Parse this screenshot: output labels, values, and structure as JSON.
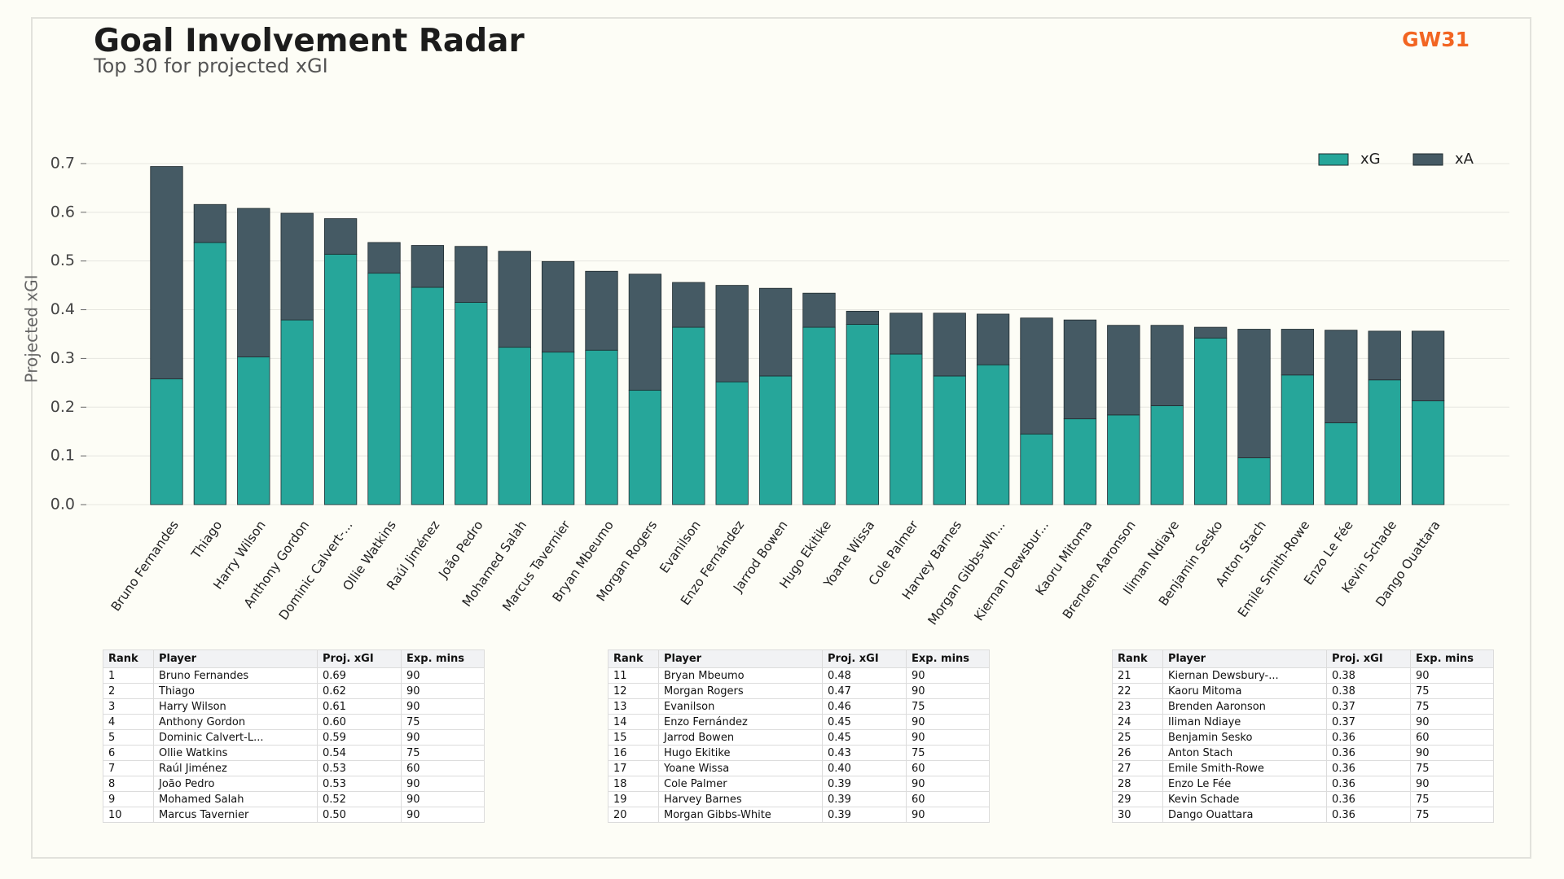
{
  "header": {
    "title": "Goal Involvement Radar",
    "subtitle": "Top 30 for projected xGI",
    "badge": "GW31"
  },
  "chart_data": {
    "type": "stacked_bar",
    "y_label": "Projected xGI",
    "categories": [
      "Bruno Fernandes",
      "Thiago",
      "Harry Wilson",
      "Anthony Gordon",
      "Dominic Calvert-...",
      "Ollie Watkins",
      "Raúl Jiménez",
      "João Pedro",
      "Mohamed Salah",
      "Marcus Tavernier",
      "Bryan Mbeumo",
      "Morgan Rogers",
      "Evanilson",
      "Enzo Fernández",
      "Jarrod Bowen",
      "Hugo Ekitike",
      "Yoane Wissa",
      "Cole Palmer",
      "Harvey Barnes",
      "Morgan Gibbs-Wh...",
      "Kiernan Dewsbur...",
      "Kaoru Mitoma",
      "Brenden Aaronson",
      "Iliman Ndiaye",
      "Benjamin Sesko",
      "Anton Stach",
      "Emile Smith-Rowe",
      "Enzo Le Fée",
      "Kevin Schade",
      "Dango Ouattara"
    ],
    "series": [
      {
        "name": "xG",
        "color": "#26a69a",
        "values": [
          0.258,
          0.538,
          0.303,
          0.379,
          0.514,
          0.475,
          0.446,
          0.415,
          0.323,
          0.313,
          0.317,
          0.235,
          0.364,
          0.252,
          0.264,
          0.364,
          0.37,
          0.309,
          0.264,
          0.287,
          0.145,
          0.176,
          0.184,
          0.203,
          0.342,
          0.096,
          0.266,
          0.168,
          0.256,
          0.213
        ]
      },
      {
        "name": "xA",
        "color": "#455a64",
        "values": [
          0.436,
          0.078,
          0.305,
          0.219,
          0.073,
          0.063,
          0.086,
          0.115,
          0.197,
          0.186,
          0.162,
          0.238,
          0.092,
          0.198,
          0.18,
          0.07,
          0.027,
          0.084,
          0.129,
          0.104,
          0.238,
          0.203,
          0.184,
          0.165,
          0.022,
          0.264,
          0.094,
          0.19,
          0.1,
          0.143
        ]
      }
    ],
    "ylim": [
      0,
      0.73
    ],
    "yticks": [
      {
        "value": 0,
        "label": "0.0"
      },
      0.1,
      0.2,
      0.3,
      0.4,
      0.5,
      0.6,
      0.7
    ],
    "grid": true,
    "legend": "upper right"
  },
  "tables": [
    {
      "columns": [
        "Rank",
        "Player",
        "Proj. xGI",
        "Exp. mins"
      ],
      "rows": [
        [
          "1",
          "Bruno Fernandes",
          "0.69",
          "90"
        ],
        [
          "2",
          "Thiago",
          "0.62",
          "90"
        ],
        [
          "3",
          "Harry Wilson",
          "0.61",
          "90"
        ],
        [
          "4",
          "Anthony Gordon",
          "0.60",
          "75"
        ],
        [
          "5",
          "Dominic Calvert-L...",
          "0.59",
          "90"
        ],
        [
          "6",
          "Ollie Watkins",
          "0.54",
          "75"
        ],
        [
          "7",
          "Raúl Jiménez",
          "0.53",
          "60"
        ],
        [
          "8",
          "João Pedro",
          "0.53",
          "90"
        ],
        [
          "9",
          "Mohamed Salah",
          "0.52",
          "90"
        ],
        [
          "10",
          "Marcus Tavernier",
          "0.50",
          "90"
        ]
      ]
    },
    {
      "columns": [
        "Rank",
        "Player",
        "Proj. xGI",
        "Exp. mins"
      ],
      "rows": [
        [
          "11",
          "Bryan Mbeumo",
          "0.48",
          "90"
        ],
        [
          "12",
          "Morgan Rogers",
          "0.47",
          "90"
        ],
        [
          "13",
          "Evanilson",
          "0.46",
          "75"
        ],
        [
          "14",
          "Enzo Fernández",
          "0.45",
          "90"
        ],
        [
          "15",
          "Jarrod Bowen",
          "0.45",
          "90"
        ],
        [
          "16",
          "Hugo Ekitike",
          "0.43",
          "75"
        ],
        [
          "17",
          "Yoane Wissa",
          "0.40",
          "60"
        ],
        [
          "18",
          "Cole Palmer",
          "0.39",
          "90"
        ],
        [
          "19",
          "Harvey Barnes",
          "0.39",
          "60"
        ],
        [
          "20",
          "Morgan Gibbs-White",
          "0.39",
          "90"
        ]
      ]
    },
    {
      "columns": [
        "Rank",
        "Player",
        "Proj. xGI",
        "Exp. mins"
      ],
      "rows": [
        [
          "21",
          "Kiernan Dewsbury-...",
          "0.38",
          "90"
        ],
        [
          "22",
          "Kaoru Mitoma",
          "0.38",
          "75"
        ],
        [
          "23",
          "Brenden Aaronson",
          "0.37",
          "75"
        ],
        [
          "24",
          "Iliman Ndiaye",
          "0.37",
          "90"
        ],
        [
          "25",
          "Benjamin Sesko",
          "0.36",
          "60"
        ],
        [
          "26",
          "Anton Stach",
          "0.36",
          "90"
        ],
        [
          "27",
          "Emile Smith-Rowe",
          "0.36",
          "75"
        ],
        [
          "28",
          "Enzo Le Fée",
          "0.36",
          "90"
        ],
        [
          "29",
          "Kevin Schade",
          "0.36",
          "75"
        ],
        [
          "30",
          "Dango Ouattara",
          "0.36",
          "75"
        ]
      ]
    }
  ]
}
